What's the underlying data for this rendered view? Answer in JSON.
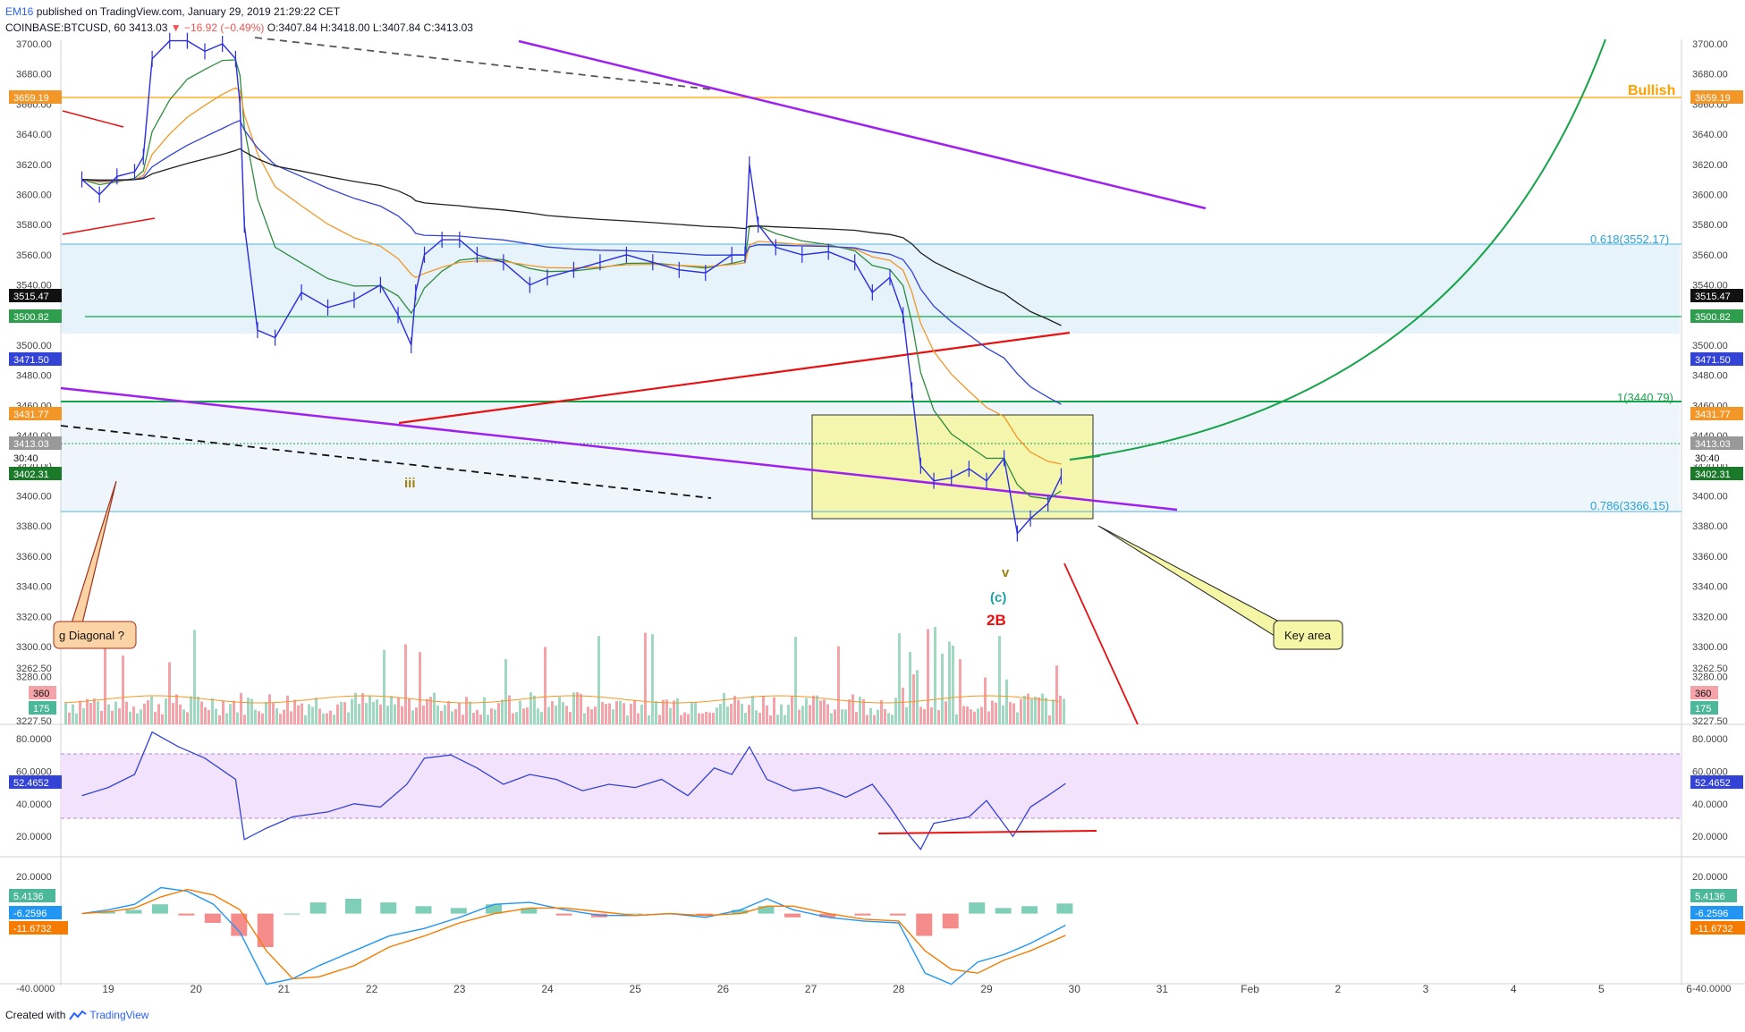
{
  "header": {
    "author": "EM16",
    "published_text": "published on TradingView.com, January 29, 2019 21:29:22 CET",
    "symbol": "COINBASE:BTCUSD, 60",
    "last": "3413.03",
    "change": "▼ −16.92 (−0.49%)",
    "ohlc": "O:3407.84 H:3418.00 L:3407.84 C:3413.03"
  },
  "footer": {
    "created_with": "Created with",
    "brand": "TradingView"
  },
  "colors": {
    "up": "#26a69a",
    "down": "#ef5350",
    "price_line": "#2a2ee0",
    "ema_fast": "#2e8b3e",
    "ema_mid": "#f29727",
    "ema_slow": "#3343d6",
    "sma_long": "#222222",
    "purple": "#a020f0",
    "red": "#e81010",
    "green": "#16a34a",
    "orange": "#ffa000",
    "fib_band": "#e6f3fb",
    "key_box": "#f5f7a7",
    "rsi_band": "#f2e2fb"
  },
  "chart_data": [
    {
      "type": "line",
      "title": "COINBASE:BTCUSD, 60",
      "x_tick_labels": [
        "19",
        "20",
        "21",
        "22",
        "23",
        "24",
        "25",
        "26",
        "27",
        "28",
        "29",
        "30",
        "31",
        "Feb",
        "2",
        "3",
        "4",
        "5",
        "6"
      ],
      "y_tick_labels": [
        "3700.00",
        "3680.00",
        "3660.00",
        "3640.00",
        "3620.00",
        "3600.00",
        "3580.00",
        "3560.00",
        "3540.00",
        "3520.00",
        "3500.00",
        "3480.00",
        "3460.00",
        "3440.00",
        "3420.00",
        "3400.00",
        "3380.00",
        "3360.00",
        "3340.00",
        "3320.00",
        "3300.00",
        "3280.00",
        "3262.50",
        "3227.50"
      ],
      "ylim": [
        3225,
        3705
      ],
      "series": [
        {
          "x": [
            18.7,
            18.9,
            19.1,
            19.3,
            19.4,
            19.5,
            19.7,
            19.9,
            20.1,
            20.3,
            20.45,
            20.5,
            20.55,
            20.7,
            20.9,
            21.2,
            21.5,
            21.8,
            22.1,
            22.3,
            22.45,
            22.5,
            22.6,
            22.8,
            23.0,
            23.2,
            23.5,
            23.8,
            24.0,
            24.3,
            24.6,
            24.9,
            25.2,
            25.5,
            25.8,
            26.1,
            26.25,
            26.3,
            26.4,
            26.6,
            26.9,
            27.2,
            27.5,
            27.7,
            27.9,
            28.05,
            28.15,
            28.25,
            28.4,
            28.6,
            28.8,
            29.0,
            29.2,
            29.35,
            29.5,
            29.7,
            29.85
          ],
          "values": [
            3610,
            3600,
            3612,
            3615,
            3625,
            3690,
            3702,
            3702,
            3695,
            3700,
            3690,
            3660,
            3580,
            3510,
            3505,
            3535,
            3525,
            3530,
            3540,
            3520,
            3500,
            3535,
            3560,
            3570,
            3570,
            3560,
            3555,
            3540,
            3545,
            3550,
            3555,
            3560,
            3555,
            3550,
            3548,
            3560,
            3560,
            3620,
            3580,
            3565,
            3560,
            3562,
            3555,
            3535,
            3545,
            3520,
            3470,
            3420,
            3410,
            3412,
            3418,
            3410,
            3425,
            3375,
            3385,
            3395,
            3413
          ]
        },
        {
          "name": "",
          "values_note": ""
        }
      ],
      "volume_values": [
        360,
        175
      ],
      "price_markers": [
        "3659.19",
        "3515.47",
        "3500.82",
        "3471.50",
        "3431.77",
        "3413.03",
        "30:40",
        "3402.31"
      ],
      "horizontal_levels": [
        {
          "price": 3659.19,
          "label": "Bullish"
        },
        {
          "price": 3552.17,
          "label": "0.618(3552.17)"
        },
        {
          "price": 3500.82,
          "label": ""
        },
        {
          "price": 3440.79,
          "label": "1(3440.79)"
        },
        {
          "price": 3366.15,
          "label": "0.786(3366.15)"
        }
      ],
      "annotations": [
        "iii",
        "v",
        "(c)",
        "2B",
        "Key area",
        "g Diagonal ?"
      ]
    },
    {
      "type": "line",
      "title": "",
      "y_tick_labels": [
        "80.0000",
        "60.0000",
        "40.0000",
        "20.0000"
      ],
      "ylim": [
        8,
        88
      ],
      "band": [
        30,
        70
      ],
      "current_value": "52.4652",
      "x": [
        18.7,
        19.0,
        19.3,
        19.5,
        19.8,
        20.1,
        20.45,
        20.55,
        20.8,
        21.1,
        21.5,
        21.8,
        22.1,
        22.4,
        22.6,
        22.9,
        23.2,
        23.5,
        23.8,
        24.1,
        24.4,
        24.7,
        25.0,
        25.3,
        25.6,
        25.9,
        26.1,
        26.3,
        26.5,
        26.8,
        27.1,
        27.4,
        27.7,
        27.9,
        28.1,
        28.25,
        28.4,
        28.6,
        28.8,
        29.0,
        29.3,
        29.5,
        29.7,
        29.9
      ],
      "values": [
        45,
        50,
        58,
        84,
        75,
        68,
        55,
        18,
        25,
        32,
        35,
        40,
        38,
        52,
        68,
        70,
        62,
        52,
        58,
        55,
        48,
        52,
        50,
        55,
        45,
        62,
        58,
        75,
        55,
        48,
        50,
        44,
        52,
        38,
        22,
        12,
        28,
        30,
        32,
        42,
        20,
        38,
        45,
        52.4652
      ]
    },
    {
      "type": "line",
      "title": "",
      "y_tick_labels": [
        "20.0000",
        "-40.0000"
      ],
      "ylim": [
        -45,
        25
      ],
      "current_values": [
        "5.4136",
        "-6.2596",
        "-11.6732"
      ],
      "x": [
        18.7,
        19.0,
        19.3,
        19.6,
        19.9,
        20.2,
        20.5,
        20.8,
        21.1,
        21.4,
        21.8,
        22.2,
        22.6,
        23.0,
        23.4,
        23.8,
        24.2,
        24.6,
        25.0,
        25.4,
        25.8,
        26.2,
        26.5,
        26.8,
        27.2,
        27.6,
        28.0,
        28.3,
        28.6,
        28.9,
        29.2,
        29.5,
        29.9
      ],
      "macd": [
        0,
        2,
        5,
        14,
        12,
        5,
        -10,
        -38,
        -35,
        -28,
        -20,
        -12,
        -8,
        -2,
        5,
        6,
        2,
        -1,
        -1,
        0,
        -2,
        2,
        8,
        2,
        -2,
        -4,
        -5,
        -32,
        -38,
        -26,
        -22,
        -16,
        -6.2596
      ],
      "signal": [
        0,
        1,
        3,
        9,
        13,
        10,
        2,
        -20,
        -35,
        -34,
        -28,
        -18,
        -12,
        -5,
        0,
        3,
        3,
        1,
        -1,
        0,
        -1,
        0,
        4,
        4,
        0,
        -3,
        -4,
        -20,
        -30,
        -32,
        -25,
        -20,
        -11.6732
      ]
    }
  ]
}
